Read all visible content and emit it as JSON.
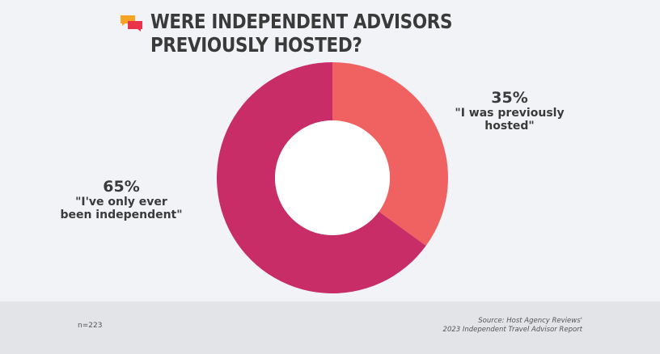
{
  "title": {
    "line1": "WERE INDEPENDENT ADVISORS",
    "line2": "PREVIOUSLY HOSTED?",
    "icon": "speech-bubbles-icon"
  },
  "colors": {
    "hosted": "#f06262",
    "independent": "#c82d68",
    "icon_orange": "#f7a325",
    "icon_red": "#e8334a"
  },
  "chart_data": {
    "type": "pie",
    "donut": true,
    "slices": [
      {
        "label": "\"I was previously hosted\"",
        "value": 35,
        "pct_text": "35%",
        "color": "#f06262"
      },
      {
        "label": "\"I've only ever been independent\"",
        "value": 65,
        "pct_text": "65%",
        "color": "#c82d68"
      }
    ]
  },
  "labels": {
    "hosted_line1": "\"I was previously",
    "hosted_line2": "hosted\"",
    "independent_line1": "\"I've only ever",
    "independent_line2": "been independent\""
  },
  "footer": {
    "n": "n=223",
    "source_line1": "Source: Host Agency Reviews'",
    "source_line2": "2023 Independent Travel Advisor Report"
  }
}
